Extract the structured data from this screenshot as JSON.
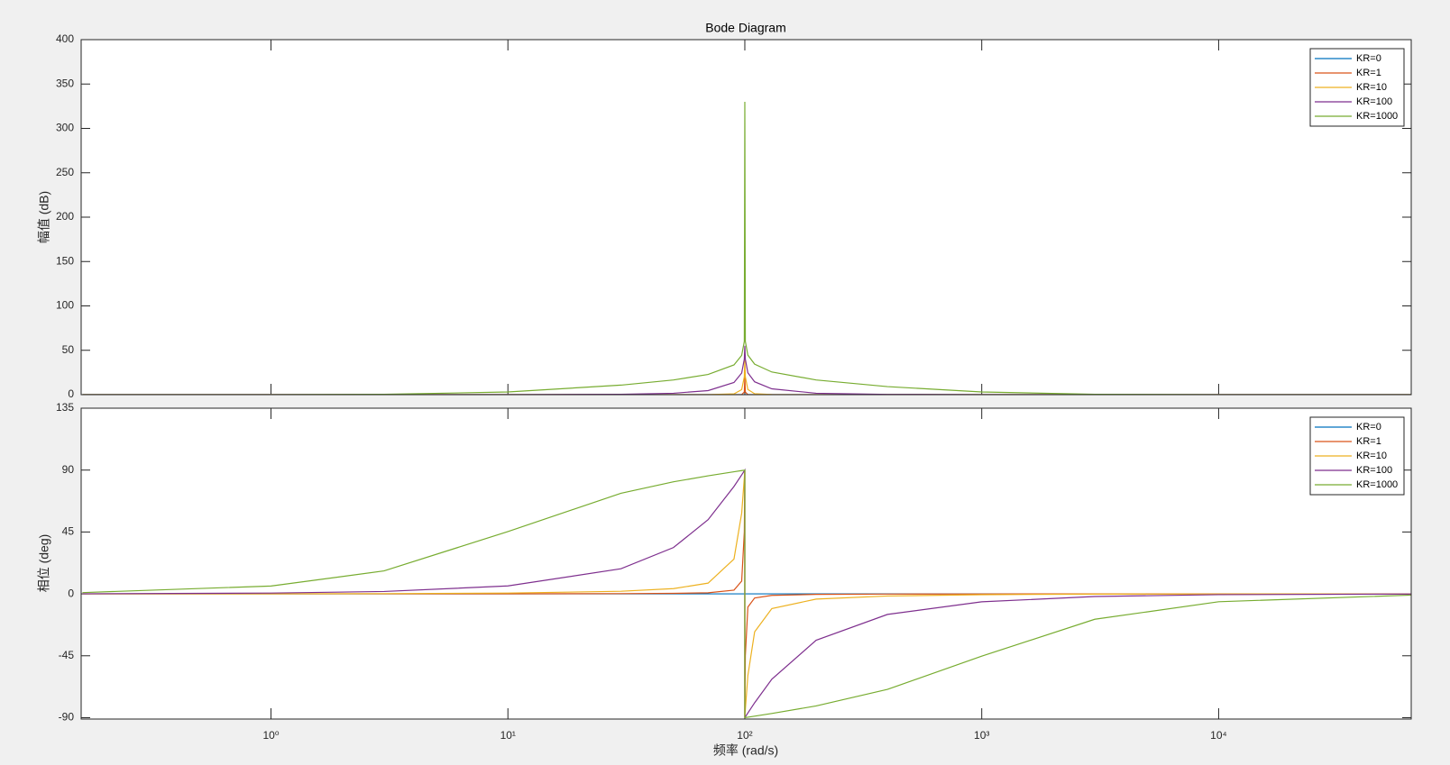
{
  "chart_data": [
    {
      "type": "line",
      "title": "Bode Diagram",
      "y_label": "幅值 (dB)",
      "x_scale": "log",
      "grid": false,
      "legend": "upper right",
      "xlim": [
        0.158,
        65000
      ],
      "ylim": [
        0,
        400
      ],
      "yticks": [
        0,
        50,
        100,
        150,
        200,
        250,
        300,
        350,
        400
      ],
      "x": [
        0.16,
        1,
        3,
        10,
        30,
        50,
        70,
        90,
        97,
        99.5,
        100,
        100.5,
        103,
        110,
        130,
        200,
        400,
        1000,
        3000,
        10000,
        65000
      ],
      "series": [
        {
          "name": "KR=0",
          "color": "#0072bd",
          "values": [
            0,
            0,
            0,
            0,
            0,
            0,
            0,
            0,
            0,
            0,
            0,
            0,
            0,
            0,
            0,
            0,
            0,
            0,
            0,
            0,
            0
          ]
        },
        {
          "name": "KR=1",
          "color": "#d95319",
          "values": [
            0,
            0,
            0,
            0,
            0,
            0,
            0,
            0.01,
            0.12,
            3.0,
            20,
            3.0,
            0.12,
            0.01,
            0,
            0,
            0,
            0,
            0,
            0,
            0
          ]
        },
        {
          "name": "KR=10",
          "color": "#edb120",
          "values": [
            0,
            0,
            0,
            0,
            0.005,
            0.019,
            0.081,
            0.87,
            5.67,
            20.02,
            40,
            20.07,
            5.87,
            1.05,
            0.15,
            0.019,
            0.003,
            0,
            0,
            0,
            0
          ]
        },
        {
          "name": "KR=100",
          "color": "#7e2f8e",
          "values": [
            0,
            0,
            0.004,
            0.044,
            0.45,
            1.6,
            4.6,
            13.7,
            24.32,
            39.98,
            55,
            40.02,
            24.58,
            14.48,
            6.58,
            1.6,
            0.3,
            0.044,
            0.005,
            0,
            0
          ]
        },
        {
          "name": "KR=1000",
          "color": "#77ac30",
          "values": [
            0.001,
            0.043,
            0.37,
            3.04,
            10.75,
            16.57,
            22.78,
            33.51,
            44.3,
            59.98,
            330,
            60.02,
            44.56,
            34.38,
            25.52,
            16.57,
            9.1,
            3.04,
            0.44,
            0.043,
            0.001
          ]
        }
      ]
    },
    {
      "type": "line",
      "y_label": "相位 (deg)",
      "x_label": "频率  (rad/s)",
      "x_scale": "log",
      "grid": false,
      "legend": "upper right",
      "xlim": [
        0.158,
        65000
      ],
      "ylim": [
        -91,
        135
      ],
      "yticks": [
        -90,
        -45,
        0,
        45,
        90,
        135
      ],
      "xticks": [
        {
          "value": 1,
          "label": "10⁰"
        },
        {
          "value": 10,
          "label": "10¹"
        },
        {
          "value": 100,
          "label": "10²"
        },
        {
          "value": 1000,
          "label": "10³"
        },
        {
          "value": 10000,
          "label": "10⁴"
        }
      ],
      "x": [
        0.16,
        1,
        3,
        10,
        30,
        50,
        70,
        90,
        97,
        99.5,
        100,
        100,
        100.5,
        103,
        110,
        130,
        200,
        400,
        1000,
        3000,
        10000,
        65000
      ],
      "series": [
        {
          "name": "KR=0",
          "color": "#0072bd",
          "values": [
            0,
            0,
            0,
            0,
            0,
            0,
            0,
            0,
            0,
            0,
            0,
            0,
            0,
            0,
            0,
            0,
            0,
            0,
            0,
            0,
            0,
            0
          ]
        },
        {
          "name": "KR=1",
          "color": "#d95319",
          "values": [
            0,
            0.006,
            0.017,
            0.058,
            0.19,
            0.38,
            0.79,
            2.71,
            9.32,
            44.93,
            90,
            -90,
            -45.07,
            -9.6,
            -3.0,
            -1.08,
            -0.38,
            -0.15,
            -0.058,
            -0.019,
            -0.006,
            -0.001
          ]
        },
        {
          "name": "KR=10",
          "color": "#edb120",
          "values": [
            0.009,
            0.057,
            0.17,
            0.58,
            1.89,
            3.81,
            7.82,
            25.35,
            58.64,
            84.28,
            90,
            -90,
            -84.3,
            -59.4,
            -27.65,
            -10.67,
            -3.81,
            -1.53,
            -0.58,
            -0.19,
            -0.057,
            -0.009
          ]
        },
        {
          "name": "KR=100",
          "color": "#7e2f8e",
          "values": [
            0.09,
            0.57,
            1.72,
            5.77,
            18.26,
            33.69,
            53.93,
            78.08,
            86.51,
            89.43,
            90,
            -90,
            -89.43,
            -86.62,
            -79.19,
            -62.04,
            -33.69,
            -14.93,
            -5.77,
            -1.91,
            -0.57,
            -0.09
          ]
        },
        {
          "name": "KR=1000",
          "color": "#77ac30",
          "values": [
            0.92,
            5.71,
            16.7,
            45.29,
            73.14,
            81.47,
            85.83,
            88.79,
            89.65,
            89.94,
            90,
            -90,
            -89.94,
            -89.66,
            -88.91,
            -86.96,
            -81.47,
            -69.44,
            -45.29,
            -18.46,
            -5.71,
            -0.88
          ]
        }
      ]
    }
  ]
}
